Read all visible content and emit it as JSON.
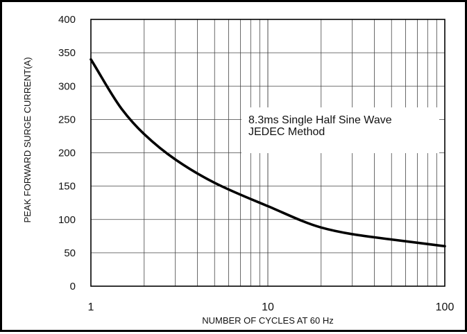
{
  "chart_data": {
    "type": "line",
    "title": "",
    "xlabel": "NUMBER OF CYCLES AT 60 Hz",
    "ylabel": "PEAK FORWARD SURGE CURRENT(A)",
    "x_scale": "log",
    "xlim": [
      1,
      100
    ],
    "ylim": [
      0,
      400
    ],
    "x_ticks": [
      1,
      10,
      100
    ],
    "x_tick_labels": [
      "1",
      "10",
      "100"
    ],
    "y_ticks": [
      0,
      50,
      100,
      150,
      200,
      250,
      300,
      350,
      400
    ],
    "y_tick_labels": [
      "0",
      "50",
      "100",
      "150",
      "200",
      "250",
      "300",
      "350",
      "400"
    ],
    "grid": true,
    "annotations": [
      "8.3ms Single Half Sine Wave",
      "JEDEC Method"
    ],
    "series": [
      {
        "x": [
          1,
          1.5,
          2,
          3,
          5,
          10,
          20,
          30,
          50,
          100
        ],
        "y": [
          340,
          265,
          228,
          190,
          155,
          120,
          88,
          78,
          70,
          60
        ]
      }
    ]
  }
}
